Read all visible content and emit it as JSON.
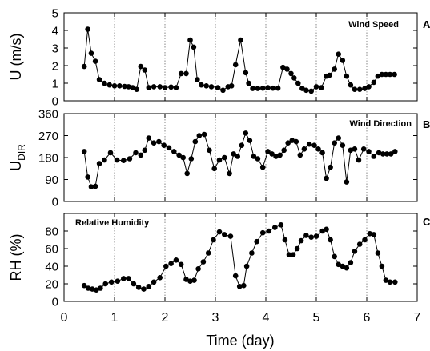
{
  "chart_data": {
    "xlabel": "Time (day)",
    "xlim": [
      0,
      7
    ],
    "xticks": [
      "0",
      "1",
      "2",
      "3",
      "4",
      "5",
      "6",
      "7"
    ],
    "panels": [
      {
        "type": "line",
        "letter": "A",
        "title": "Wind Speed",
        "ylabel": "U (m/s)",
        "ylim": [
          0,
          5
        ],
        "yticks": [
          0,
          1,
          2,
          3,
          4,
          5
        ],
        "x": [
          0.4,
          0.47,
          0.54,
          0.62,
          0.7,
          0.8,
          0.9,
          1.0,
          1.1,
          1.2,
          1.28,
          1.36,
          1.44,
          1.52,
          1.6,
          1.68,
          1.78,
          1.9,
          2.0,
          2.12,
          2.22,
          2.32,
          2.42,
          2.5,
          2.57,
          2.64,
          2.72,
          2.82,
          2.92,
          3.05,
          3.15,
          3.25,
          3.32,
          3.4,
          3.5,
          3.6,
          3.66,
          3.74,
          3.84,
          3.94,
          4.04,
          4.14,
          4.24,
          4.34,
          4.42,
          4.5,
          4.56,
          4.64,
          4.72,
          4.8,
          4.9,
          5.0,
          5.1,
          5.2,
          5.26,
          5.36,
          5.44,
          5.52,
          5.6,
          5.68,
          5.76,
          5.86,
          5.96,
          6.04,
          6.14,
          6.22,
          6.3,
          6.38,
          6.46,
          6.55
        ],
        "y": [
          1.95,
          4.07,
          2.7,
          2.25,
          1.2,
          1.0,
          0.9,
          0.85,
          0.85,
          0.82,
          0.8,
          0.75,
          0.65,
          1.95,
          1.75,
          0.75,
          0.8,
          0.8,
          0.75,
          0.78,
          0.75,
          1.55,
          1.55,
          3.45,
          3.05,
          1.2,
          0.9,
          0.85,
          0.8,
          0.75,
          0.6,
          0.8,
          0.85,
          2.05,
          3.45,
          1.6,
          1.0,
          0.7,
          0.7,
          0.72,
          0.75,
          0.72,
          0.72,
          1.9,
          1.8,
          1.55,
          1.3,
          1.0,
          0.7,
          0.6,
          0.55,
          0.8,
          0.75,
          1.4,
          1.45,
          1.8,
          2.65,
          2.3,
          1.4,
          0.9,
          0.65,
          0.65,
          0.7,
          0.8,
          1.05,
          1.4,
          1.5,
          1.5,
          1.5,
          1.5
        ]
      },
      {
        "type": "line",
        "letter": "B",
        "title": "Wind Direction",
        "ylabel": "U",
        "ylabel_sub": "DIR",
        "ylim": [
          0,
          360
        ],
        "yticks": [
          0,
          90,
          180,
          270,
          360
        ],
        "x": [
          0.4,
          0.47,
          0.54,
          0.62,
          0.7,
          0.8,
          0.92,
          1.05,
          1.18,
          1.3,
          1.42,
          1.52,
          1.6,
          1.68,
          1.78,
          1.88,
          1.98,
          2.08,
          2.18,
          2.28,
          2.36,
          2.44,
          2.52,
          2.6,
          2.68,
          2.78,
          2.88,
          2.98,
          3.08,
          3.18,
          3.28,
          3.36,
          3.44,
          3.52,
          3.6,
          3.68,
          3.76,
          3.84,
          3.94,
          4.04,
          4.12,
          4.2,
          4.28,
          4.36,
          4.44,
          4.52,
          4.6,
          4.68,
          4.76,
          4.86,
          4.96,
          5.04,
          5.12,
          5.2,
          5.28,
          5.36,
          5.44,
          5.52,
          5.6,
          5.68,
          5.76,
          5.84,
          5.94,
          6.04,
          6.14,
          6.24,
          6.32,
          6.4,
          6.48,
          6.56
        ],
        "y": [
          205,
          100,
          60,
          62,
          155,
          170,
          200,
          170,
          168,
          175,
          200,
          190,
          210,
          260,
          240,
          245,
          230,
          220,
          205,
          190,
          180,
          115,
          175,
          245,
          270,
          275,
          210,
          135,
          170,
          180,
          115,
          195,
          185,
          230,
          280,
          250,
          185,
          175,
          140,
          205,
          195,
          185,
          190,
          210,
          240,
          250,
          245,
          190,
          215,
          235,
          230,
          215,
          200,
          95,
          140,
          240,
          260,
          230,
          80,
          210,
          215,
          170,
          215,
          205,
          185,
          200,
          195,
          195,
          195,
          205
        ]
      },
      {
        "type": "line",
        "letter": "C",
        "title": "Relative Humidity",
        "ylabel": "RH (%)",
        "ylim": [
          0,
          100
        ],
        "yticks": [
          0,
          20,
          40,
          60,
          80
        ],
        "x": [
          0.4,
          0.48,
          0.56,
          0.64,
          0.72,
          0.82,
          0.94,
          1.06,
          1.18,
          1.28,
          1.38,
          1.48,
          1.58,
          1.68,
          1.78,
          1.9,
          2.02,
          2.12,
          2.22,
          2.32,
          2.42,
          2.5,
          2.58,
          2.66,
          2.76,
          2.86,
          2.96,
          3.08,
          3.18,
          3.3,
          3.4,
          3.48,
          3.56,
          3.62,
          3.72,
          3.82,
          3.94,
          4.06,
          4.18,
          4.3,
          4.38,
          4.46,
          4.54,
          4.62,
          4.7,
          4.8,
          4.9,
          5.0,
          5.12,
          5.2,
          5.28,
          5.36,
          5.44,
          5.52,
          5.6,
          5.68,
          5.76,
          5.86,
          5.96,
          6.06,
          6.14,
          6.22,
          6.3,
          6.38,
          6.46,
          6.56
        ],
        "y": [
          18,
          15,
          14,
          13,
          15,
          20,
          22,
          23,
          26,
          26,
          20,
          16,
          14,
          17,
          22,
          27,
          40,
          43,
          47,
          42,
          25,
          23,
          24,
          37,
          45,
          55,
          70,
          79,
          76,
          74,
          29,
          17,
          18,
          40,
          55,
          68,
          78,
          80,
          84,
          87,
          70,
          53,
          53,
          60,
          69,
          75,
          73,
          74,
          80,
          82,
          70,
          51,
          42,
          40,
          38,
          44,
          57,
          65,
          70,
          77,
          76,
          55,
          40,
          24,
          22,
          22
        ]
      }
    ]
  }
}
